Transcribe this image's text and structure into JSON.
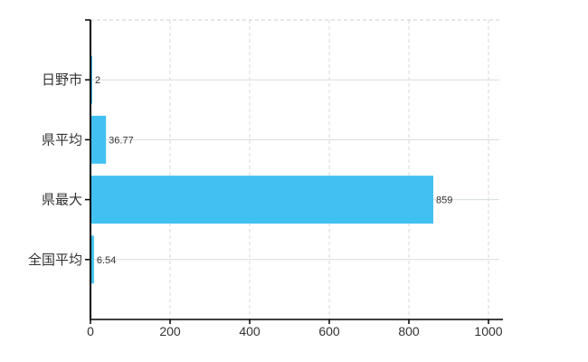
{
  "chart_data": {
    "type": "bar",
    "orientation": "horizontal",
    "title": "",
    "xlabel": "",
    "ylabel": "",
    "categories": [
      "日野市",
      "県平均",
      "県最大",
      "全国平均"
    ],
    "values": [
      2,
      36.77,
      859,
      6.54
    ],
    "value_labels": [
      "2",
      "36.77",
      "859",
      "6.54"
    ],
    "x_ticks": [
      0,
      200,
      400,
      600,
      800,
      1000
    ],
    "x_tick_labels": [
      "0",
      "200",
      "400",
      "600",
      "800",
      "1000"
    ],
    "xlim": [
      0,
      1000
    ],
    "grid": true,
    "legend": false,
    "colors": {
      "bar": "#41c0f2",
      "axis": "#000000",
      "grid_vertical": "#d9d9d9",
      "grid_horizontal": "#d5ded8",
      "plot_top_border": "#cccccc",
      "label_text": "#333333",
      "background": "#ffffff"
    }
  }
}
